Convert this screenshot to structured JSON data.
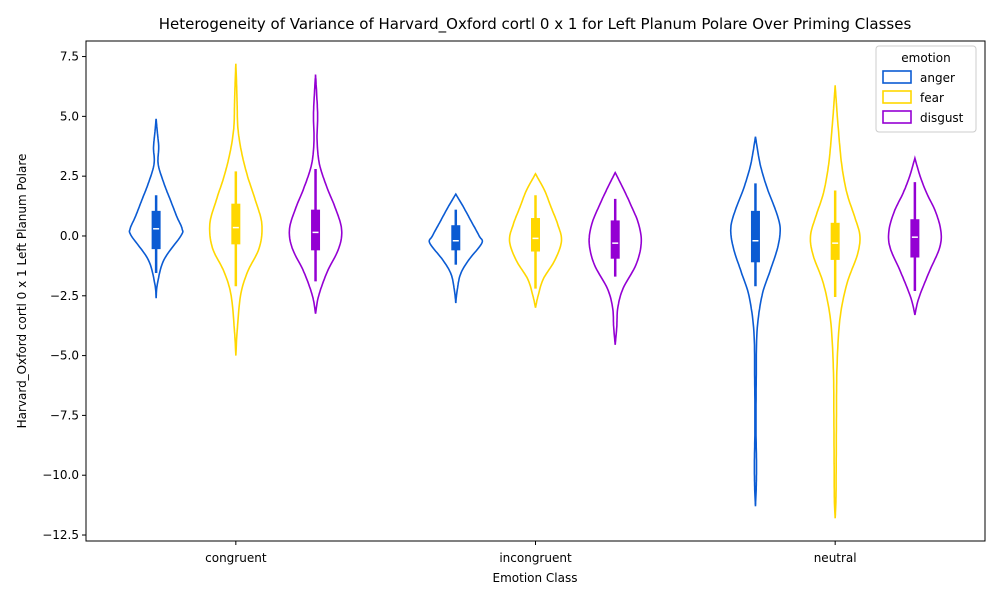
{
  "chart_data": {
    "type": "violin",
    "title": "Heterogeneity of Variance of Harvard_Oxford cortl 0 x 1 for Left Planum Polare Over Priming Classes",
    "xlabel": "Emotion Class",
    "ylabel": "Harvard_Oxford cortl 0 x 1 Left Planum Polare",
    "categories": [
      "congruent",
      "incongruent",
      "neutral"
    ],
    "ylim": [
      -12.75,
      8.15
    ],
    "yticks": [
      -12.5,
      -10.0,
      -7.5,
      -5.0,
      -2.5,
      0.0,
      2.5,
      5.0,
      7.5
    ],
    "yticklabels": [
      "−12.5",
      "−10.0",
      "−7.5",
      "−5.0",
      "−2.5",
      "0.0",
      "2.5",
      "5.0",
      "7.5"
    ],
    "grid": false,
    "legend": {
      "title": "emotion",
      "position": "top-right"
    },
    "series": [
      {
        "name": "anger",
        "color": "#0b5bd3",
        "stats": [
          {
            "min": -1.55,
            "q1": -0.55,
            "median": 0.3,
            "q3": 1.05,
            "max": 1.7,
            "kde_min": -2.6,
            "kde_max": 4.9,
            "profile": [
              [
                -2.6,
                0.0
              ],
              [
                -2.0,
                0.05
              ],
              [
                -1.0,
                0.3
              ],
              [
                0.0,
                0.95
              ],
              [
                0.3,
                1.0
              ],
              [
                0.8,
                0.8
              ],
              [
                1.5,
                0.55
              ],
              [
                2.2,
                0.3
              ],
              [
                3.0,
                0.08
              ],
              [
                3.7,
                0.1
              ],
              [
                4.3,
                0.05
              ],
              [
                4.9,
                0.0
              ]
            ]
          },
          {
            "min": -1.2,
            "q1": -0.6,
            "median": -0.2,
            "q3": 0.45,
            "max": 1.1,
            "kde_min": -2.8,
            "kde_max": 1.75,
            "profile": [
              [
                -2.8,
                0.0
              ],
              [
                -2.3,
                0.05
              ],
              [
                -1.6,
                0.18
              ],
              [
                -1.0,
                0.5
              ],
              [
                -0.3,
                1.0
              ],
              [
                0.0,
                0.9
              ],
              [
                0.6,
                0.6
              ],
              [
                1.2,
                0.3
              ],
              [
                1.75,
                0.0
              ]
            ]
          },
          {
            "min": -2.1,
            "q1": -1.1,
            "median": -0.2,
            "q3": 1.05,
            "max": 2.2,
            "kde_min": -11.3,
            "kde_max": 4.15,
            "profile": [
              [
                -11.3,
                0.0
              ],
              [
                -10.5,
                0.03
              ],
              [
                -9.5,
                0.04
              ],
              [
                -8.0,
                0.02
              ],
              [
                -6.0,
                0.03
              ],
              [
                -4.0,
                0.06
              ],
              [
                -2.5,
                0.25
              ],
              [
                -1.5,
                0.55
              ],
              [
                -0.5,
                0.85
              ],
              [
                0.3,
                0.95
              ],
              [
                1.0,
                0.8
              ],
              [
                2.0,
                0.45
              ],
              [
                3.0,
                0.18
              ],
              [
                4.15,
                0.0
              ]
            ]
          }
        ]
      },
      {
        "name": "fear",
        "color": "#ffd700",
        "stats": [
          {
            "min": -2.1,
            "q1": -0.35,
            "median": 0.35,
            "q3": 1.35,
            "max": 2.7,
            "kde_min": -5.0,
            "kde_max": 7.2,
            "profile": [
              [
                -5.0,
                0.0
              ],
              [
                -4.0,
                0.05
              ],
              [
                -2.5,
                0.18
              ],
              [
                -1.5,
                0.45
              ],
              [
                -0.5,
                0.9
              ],
              [
                0.5,
                1.0
              ],
              [
                1.5,
                0.75
              ],
              [
                2.5,
                0.45
              ],
              [
                3.5,
                0.22
              ],
              [
                4.5,
                0.08
              ],
              [
                5.5,
                0.05
              ],
              [
                6.3,
                0.03
              ],
              [
                7.2,
                0.0
              ]
            ]
          },
          {
            "min": -2.2,
            "q1": -0.65,
            "median": -0.1,
            "q3": 0.75,
            "max": 1.7,
            "kde_min": -3.0,
            "kde_max": 2.6,
            "profile": [
              [
                -3.0,
                0.0
              ],
              [
                -2.5,
                0.1
              ],
              [
                -1.8,
                0.3
              ],
              [
                -1.0,
                0.75
              ],
              [
                -0.2,
                1.0
              ],
              [
                0.5,
                0.85
              ],
              [
                1.2,
                0.6
              ],
              [
                1.9,
                0.35
              ],
              [
                2.6,
                0.0
              ]
            ]
          },
          {
            "min": -2.55,
            "q1": -1.0,
            "median": -0.3,
            "q3": 0.55,
            "max": 1.9,
            "kde_min": -11.8,
            "kde_max": 6.3,
            "profile": [
              [
                -11.8,
                0.0
              ],
              [
                -11.0,
                0.03
              ],
              [
                -9.5,
                0.04
              ],
              [
                -7.5,
                0.05
              ],
              [
                -5.5,
                0.07
              ],
              [
                -3.5,
                0.18
              ],
              [
                -2.0,
                0.45
              ],
              [
                -0.8,
                0.85
              ],
              [
                0.0,
                0.95
              ],
              [
                0.8,
                0.75
              ],
              [
                1.8,
                0.45
              ],
              [
                3.0,
                0.25
              ],
              [
                4.5,
                0.12
              ],
              [
                5.5,
                0.05
              ],
              [
                6.3,
                0.0
              ]
            ]
          }
        ]
      },
      {
        "name": "disgust",
        "color": "#9400d3",
        "stats": [
          {
            "min": -1.9,
            "q1": -0.6,
            "median": 0.15,
            "q3": 1.1,
            "max": 2.8,
            "kde_min": -3.25,
            "kde_max": 6.75,
            "profile": [
              [
                -3.25,
                0.0
              ],
              [
                -2.5,
                0.12
              ],
              [
                -1.5,
                0.45
              ],
              [
                -0.5,
                0.9
              ],
              [
                0.3,
                1.0
              ],
              [
                1.2,
                0.75
              ],
              [
                2.0,
                0.45
              ],
              [
                3.0,
                0.15
              ],
              [
                4.0,
                0.06
              ],
              [
                5.0,
                0.08
              ],
              [
                5.8,
                0.05
              ],
              [
                6.75,
                0.0
              ]
            ]
          },
          {
            "min": -1.7,
            "q1": -0.95,
            "median": -0.3,
            "q3": 0.65,
            "max": 1.55,
            "kde_min": -4.55,
            "kde_max": 2.65,
            "profile": [
              [
                -4.55,
                0.0
              ],
              [
                -3.8,
                0.06
              ],
              [
                -3.0,
                0.1
              ],
              [
                -2.2,
                0.3
              ],
              [
                -1.2,
                0.8
              ],
              [
                -0.3,
                1.0
              ],
              [
                0.5,
                0.9
              ],
              [
                1.3,
                0.6
              ],
              [
                2.0,
                0.3
              ],
              [
                2.65,
                0.0
              ]
            ]
          },
          {
            "min": -2.3,
            "q1": -0.9,
            "median": -0.05,
            "q3": 0.7,
            "max": 2.25,
            "kde_min": -3.3,
            "kde_max": 3.25,
            "profile": [
              [
                -3.3,
                0.0
              ],
              [
                -2.6,
                0.15
              ],
              [
                -1.5,
                0.55
              ],
              [
                -0.5,
                0.95
              ],
              [
                0.2,
                1.0
              ],
              [
                1.0,
                0.8
              ],
              [
                1.8,
                0.45
              ],
              [
                2.5,
                0.2
              ],
              [
                3.25,
                0.0
              ]
            ]
          }
        ]
      }
    ]
  }
}
